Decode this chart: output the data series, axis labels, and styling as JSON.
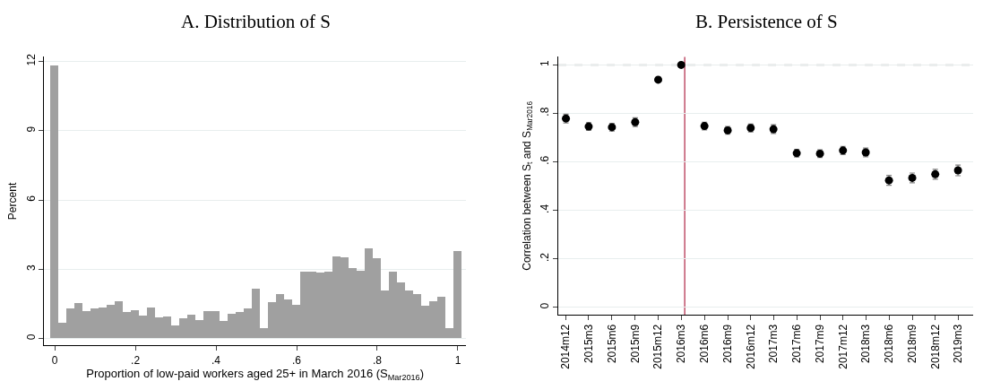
{
  "chart_data": [
    {
      "type": "histogram",
      "title": "A. Distribution of S",
      "xlabel": "Proportion of low-paid workers aged 25+ in March 2016 (S$_{Mar2016}$)",
      "ylabel": "Percent",
      "color": "#a0a0a0",
      "bins": [
        -0.01,
        0.01,
        0.03,
        0.05,
        0.07,
        0.09,
        0.11,
        0.13,
        0.15,
        0.17,
        0.19,
        0.21,
        0.23,
        0.25,
        0.27,
        0.29,
        0.31,
        0.33,
        0.35,
        0.37,
        0.39,
        0.41,
        0.43,
        0.45,
        0.47,
        0.49,
        0.51,
        0.53,
        0.55,
        0.57,
        0.59,
        0.61,
        0.63,
        0.65,
        0.67,
        0.69,
        0.71,
        0.73,
        0.75,
        0.77,
        0.79,
        0.81,
        0.83,
        0.85,
        0.87,
        0.89,
        0.91,
        0.93,
        0.95,
        0.97,
        0.99,
        1.01
      ],
      "values": [
        11.8,
        0.67,
        1.29,
        1.52,
        1.19,
        1.29,
        1.33,
        1.46,
        1.61,
        1.14,
        1.23,
        0.99,
        1.33,
        0.92,
        0.94,
        0.55,
        0.88,
        1.02,
        0.8,
        1.17,
        1.19,
        0.74,
        1.07,
        1.15,
        1.29,
        2.14,
        0.45,
        1.58,
        1.92,
        1.69,
        1.44,
        2.88,
        2.88,
        2.84,
        2.87,
        3.53,
        3.49,
        3.04,
        2.91,
        3.89,
        3.46,
        2.06,
        2.87,
        2.43,
        2.05,
        1.92,
        1.42,
        1.62,
        1.79,
        0.45,
        3.76
      ],
      "xlim": [
        -0.026,
        1.02
      ],
      "ylim": [
        -0.3,
        12.2
      ],
      "xticks": [
        0,
        {
          "value": 0.2,
          "label": ".2"
        },
        {
          "value": 0.4,
          "label": ".4"
        },
        {
          "value": 0.6,
          "label": ".6"
        },
        {
          "value": 0.8,
          "label": ".8"
        },
        1
      ],
      "yticks": [
        0,
        3,
        6,
        9,
        12
      ],
      "grid": "y"
    },
    {
      "type": "scatter",
      "title": "B. Persistence of S",
      "ylabel": "Correlation between S$_{t}$ and S$_{Mar2016}$",
      "marker": "circle",
      "color": "#000000",
      "x": [
        "2014-12",
        "2015-03",
        "2015-06",
        "2015-09",
        "2015-12",
        "2016-03",
        "2016-06",
        "2016-09",
        "2016-12",
        "2017-03",
        "2017-06",
        "2017-09",
        "2017-12",
        "2018-03",
        "2018-06",
        "2018-09",
        "2018-12",
        "2019-03"
      ],
      "values": [
        0.779,
        0.746,
        0.743,
        0.764,
        0.939,
        1.0,
        0.748,
        0.73,
        0.74,
        0.735,
        0.636,
        0.634,
        0.647,
        0.639,
        0.524,
        0.534,
        0.549,
        0.565
      ],
      "errors": [
        0.018,
        0.016,
        0.016,
        0.018,
        null,
        null,
        0.016,
        0.016,
        0.016,
        0.018,
        0.016,
        0.016,
        0.017,
        0.018,
        0.02,
        0.02,
        0.02,
        0.022
      ],
      "xlim": [
        "2014-11-01",
        "2019-04-30"
      ],
      "ylim": [
        -0.03,
        1.033
      ],
      "xticks": [
        {
          "value": "2014-12",
          "label": "2014m12"
        },
        {
          "value": "2015-03",
          "label": "2015m3"
        },
        {
          "value": "2015-06",
          "label": "2015m6"
        },
        {
          "value": "2015-09",
          "label": "2015m9"
        },
        {
          "value": "2015-12",
          "label": "2015m12"
        },
        {
          "value": "2016-03",
          "label": "2016m3"
        },
        {
          "value": "2016-06",
          "label": "2016m6"
        },
        {
          "value": "2016-09",
          "label": "2016m9"
        },
        {
          "value": "2016-12",
          "label": "2016m12"
        },
        {
          "value": "2017-03",
          "label": "2017m3"
        },
        {
          "value": "2017-06",
          "label": "2017m6"
        },
        {
          "value": "2017-09",
          "label": "2017m9"
        },
        {
          "value": "2017-12",
          "label": "2017m12"
        },
        {
          "value": "2018-03",
          "label": "2018m3"
        },
        {
          "value": "2018-06",
          "label": "2018m6"
        },
        {
          "value": "2018-09",
          "label": "2018m9"
        },
        {
          "value": "2018-12",
          "label": "2018m12"
        },
        {
          "value": "2019-03",
          "label": "2019m3"
        }
      ],
      "yticks": [
        0,
        {
          "value": 0.2,
          "label": ".2"
        },
        {
          "value": 0.4,
          "label": ".4"
        },
        {
          "value": 0.6,
          "label": ".6"
        },
        {
          "value": 0.8,
          "label": ".8"
        },
        1
      ],
      "ref_lines": [
        {
          "axis": "y",
          "value": 1,
          "color": "#b4b4b4",
          "line_style": "dashed"
        },
        {
          "axis": "x",
          "value": "2016-03-15",
          "color": "#c0506a",
          "line_style": "solid"
        }
      ],
      "grid": "y"
    }
  ]
}
